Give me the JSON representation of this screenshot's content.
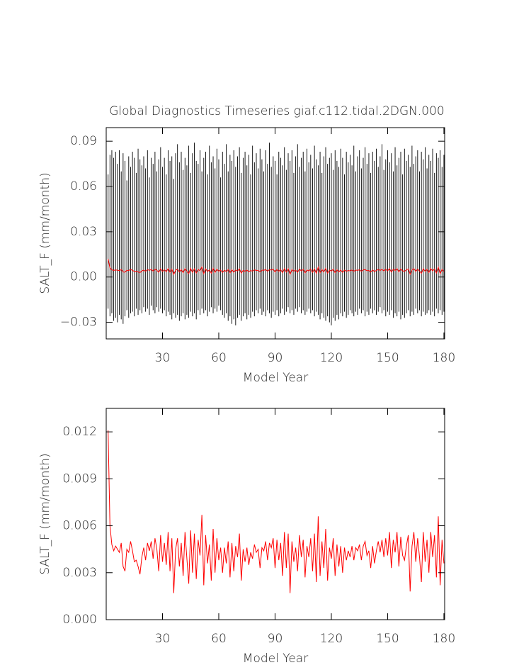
{
  "chart_data": [
    {
      "type": "line",
      "title": "Global Diagnostics Timeseries giaf.c112.tidal.2DGN.000",
      "y_label": "SALT_F (mm/month)",
      "x_label": "Model Year",
      "xlim": [
        0,
        180.4
      ],
      "xticks": [
        30,
        60,
        90,
        120,
        150,
        180
      ],
      "ylim": [
        -0.041,
        0.099
      ],
      "yticks": [
        0.09,
        0.06,
        0.03,
        {
          "value": 0,
          "label": "0.00"
        },
        {
          "value": -0.03,
          "label": "−0.03"
        }
      ],
      "x": [
        1,
        2,
        3,
        4,
        5,
        6,
        7,
        8,
        9,
        10,
        11,
        12,
        13,
        14,
        15,
        16,
        17,
        18,
        19,
        20,
        21,
        22,
        23,
        24,
        25,
        26,
        27,
        28,
        29,
        30,
        31,
        32,
        33,
        34,
        35,
        36,
        37,
        38,
        39,
        40,
        41,
        42,
        43,
        44,
        45,
        46,
        47,
        48,
        49,
        50,
        51,
        52,
        53,
        54,
        55,
        56,
        57,
        58,
        59,
        60,
        61,
        62,
        63,
        64,
        65,
        66,
        67,
        68,
        69,
        70,
        71,
        72,
        73,
        74,
        75,
        76,
        77,
        78,
        79,
        80,
        81,
        82,
        83,
        84,
        85,
        86,
        87,
        88,
        89,
        90,
        91,
        92,
        93,
        94,
        95,
        96,
        97,
        98,
        99,
        100,
        101,
        102,
        103,
        104,
        105,
        106,
        107,
        108,
        109,
        110,
        111,
        112,
        113,
        114,
        115,
        116,
        117,
        118,
        119,
        120,
        121,
        122,
        123,
        124,
        125,
        126,
        127,
        128,
        129,
        130,
        131,
        132,
        133,
        134,
        135,
        136,
        137,
        138,
        139,
        140,
        141,
        142,
        143,
        144,
        145,
        146,
        147,
        148,
        149,
        150,
        151,
        152,
        153,
        154,
        155,
        156,
        157,
        158,
        159,
        160,
        161,
        162,
        163,
        164,
        165,
        166,
        167,
        168,
        169,
        170,
        171,
        172,
        173,
        174,
        175,
        176,
        177,
        178,
        179,
        180
      ],
      "range": {
        "color": "#000000",
        "high": [
          0.068,
          0.081,
          0.084,
          0.079,
          0.083,
          0.075,
          0.084,
          0.07,
          0.082,
          0.077,
          0.064,
          0.08,
          0.073,
          0.083,
          0.079,
          0.069,
          0.085,
          0.078,
          0.074,
          0.08,
          0.072,
          0.084,
          0.066,
          0.079,
          0.075,
          0.083,
          0.07,
          0.078,
          0.086,
          0.073,
          0.079,
          0.068,
          0.084,
          0.077,
          0.08,
          0.065,
          0.082,
          0.088,
          0.076,
          0.083,
          0.071,
          0.079,
          0.074,
          0.087,
          0.069,
          0.082,
          0.089,
          0.077,
          0.075,
          0.084,
          0.07,
          0.079,
          0.083,
          0.068,
          0.087,
          0.076,
          0.08,
          0.072,
          0.085,
          0.078,
          0.066,
          0.083,
          0.075,
          0.088,
          0.07,
          0.081,
          0.077,
          0.084,
          0.073,
          0.08,
          0.086,
          0.069,
          0.079,
          0.083,
          0.074,
          0.081,
          0.068,
          0.087,
          0.076,
          0.082,
          0.072,
          0.085,
          0.078,
          0.07,
          0.084,
          0.075,
          0.089,
          0.073,
          0.08,
          0.077,
          0.068,
          0.083,
          0.079,
          0.074,
          0.086,
          0.071,
          0.082,
          0.077,
          0.084,
          0.069,
          0.08,
          0.088,
          0.073,
          0.079,
          0.083,
          0.07,
          0.085,
          0.076,
          0.081,
          0.072,
          0.087,
          0.078,
          0.074,
          0.083,
          0.069,
          0.08,
          0.086,
          0.075,
          0.079,
          0.082,
          0.071,
          0.084,
          0.077,
          0.073,
          0.085,
          0.079,
          0.068,
          0.083,
          0.076,
          0.081,
          0.074,
          0.087,
          0.07,
          0.08,
          0.084,
          0.072,
          0.079,
          0.086,
          0.075,
          0.082,
          0.069,
          0.083,
          0.077,
          0.085,
          0.073,
          0.08,
          0.088,
          0.071,
          0.078,
          0.084,
          0.076,
          0.082,
          0.07,
          0.086,
          0.074,
          0.079,
          0.083,
          0.068,
          0.085,
          0.077,
          0.081,
          0.073,
          0.087,
          0.075,
          0.08,
          0.084,
          0.07,
          0.083,
          0.078,
          0.086,
          0.072,
          0.081,
          0.077,
          0.085,
          0.069,
          0.082,
          0.079,
          0.084,
          0.073,
          0.081
        ],
        "low": [
          -0.021,
          -0.026,
          -0.024,
          -0.029,
          -0.027,
          -0.03,
          -0.025,
          -0.028,
          -0.031,
          -0.026,
          -0.022,
          -0.027,
          -0.024,
          -0.023,
          -0.026,
          -0.021,
          -0.025,
          -0.022,
          -0.024,
          -0.02,
          -0.023,
          -0.021,
          -0.025,
          -0.019,
          -0.022,
          -0.024,
          -0.02,
          -0.023,
          -0.021,
          -0.024,
          -0.022,
          -0.026,
          -0.023,
          -0.025,
          -0.028,
          -0.024,
          -0.027,
          -0.025,
          -0.029,
          -0.026,
          -0.024,
          -0.028,
          -0.025,
          -0.027,
          -0.023,
          -0.026,
          -0.024,
          -0.028,
          -0.022,
          -0.025,
          -0.021,
          -0.024,
          -0.022,
          -0.026,
          -0.023,
          -0.02,
          -0.024,
          -0.021,
          -0.023,
          -0.019,
          -0.022,
          -0.025,
          -0.027,
          -0.024,
          -0.029,
          -0.026,
          -0.031,
          -0.028,
          -0.032,
          -0.027,
          -0.025,
          -0.029,
          -0.026,
          -0.024,
          -0.028,
          -0.025,
          -0.027,
          -0.023,
          -0.026,
          -0.022,
          -0.024,
          -0.021,
          -0.025,
          -0.023,
          -0.026,
          -0.022,
          -0.024,
          -0.027,
          -0.023,
          -0.025,
          -0.022,
          -0.026,
          -0.024,
          -0.021,
          -0.025,
          -0.023,
          -0.02,
          -0.024,
          -0.022,
          -0.025,
          -0.021,
          -0.023,
          -0.02,
          -0.024,
          -0.022,
          -0.025,
          -0.023,
          -0.021,
          -0.024,
          -0.022,
          -0.026,
          -0.023,
          -0.025,
          -0.028,
          -0.024,
          -0.027,
          -0.029,
          -0.026,
          -0.03,
          -0.032,
          -0.027,
          -0.029,
          -0.025,
          -0.028,
          -0.024,
          -0.026,
          -0.023,
          -0.027,
          -0.025,
          -0.022,
          -0.024,
          -0.026,
          -0.023,
          -0.025,
          -0.021,
          -0.024,
          -0.022,
          -0.026,
          -0.023,
          -0.025,
          -0.021,
          -0.024,
          -0.022,
          -0.025,
          -0.023,
          -0.02,
          -0.024,
          -0.022,
          -0.026,
          -0.023,
          -0.025,
          -0.022,
          -0.027,
          -0.024,
          -0.026,
          -0.023,
          -0.028,
          -0.025,
          -0.027,
          -0.024,
          -0.022,
          -0.026,
          -0.023,
          -0.025,
          -0.021,
          -0.024,
          -0.022,
          -0.026,
          -0.023,
          -0.025,
          -0.024,
          -0.022,
          -0.025,
          -0.023,
          -0.026,
          -0.021,
          -0.024,
          -0.022,
          -0.025,
          -0.023
        ]
      },
      "series": [
        {
          "color": "#ff0000",
          "values": [
            0.0121,
            0.006,
            0.0048,
            0.0044,
            0.0047,
            0.0045,
            0.0043,
            0.0049,
            0.0034,
            0.0031,
            0.0045,
            0.0043,
            0.005,
            0.0044,
            0.0037,
            0.0038,
            0.0034,
            0.0029,
            0.004,
            0.0046,
            0.0038,
            0.0049,
            0.0044,
            0.005,
            0.0039,
            0.0052,
            0.0045,
            0.0031,
            0.0054,
            0.0037,
            0.0049,
            0.0035,
            0.0056,
            0.0031,
            0.0052,
            0.0017,
            0.0045,
            0.0052,
            0.0034,
            0.0049,
            0.0028,
            0.0056,
            0.0039,
            0.0023,
            0.0057,
            0.003,
            0.0055,
            0.0026,
            0.0051,
            0.0041,
            0.0067,
            0.0022,
            0.0054,
            0.0036,
            0.0048,
            0.0025,
            0.0058,
            0.003,
            0.0052,
            0.0038,
            0.0046,
            0.003,
            0.0046,
            0.0036,
            0.005,
            0.0027,
            0.0049,
            0.0031,
            0.0047,
            0.004,
            0.0055,
            0.0025,
            0.0045,
            0.0037,
            0.0046,
            0.0035,
            0.0043,
            0.0039,
            0.0048,
            0.0043,
            0.0045,
            0.0033,
            0.0046,
            0.0044,
            0.005,
            0.0038,
            0.0049,
            0.0046,
            0.0052,
            0.0033,
            0.0051,
            0.0038,
            0.0049,
            0.0028,
            0.0056,
            0.0033,
            0.0055,
            0.0017,
            0.005,
            0.0037,
            0.0046,
            0.0031,
            0.0054,
            0.004,
            0.0051,
            0.0027,
            0.0047,
            0.004,
            0.0052,
            0.0031,
            0.0055,
            0.0024,
            0.0066,
            0.0028,
            0.005,
            0.0033,
            0.0058,
            0.0025,
            0.0046,
            0.0039,
            0.0052,
            0.0028,
            0.0048,
            0.0034,
            0.0047,
            0.003,
            0.0046,
            0.0038,
            0.0044,
            0.004,
            0.0047,
            0.0038,
            0.0046,
            0.0044,
            0.0048,
            0.0038,
            0.0047,
            0.005,
            0.0041,
            0.0044,
            0.0033,
            0.0047,
            0.0036,
            0.0044,
            0.005,
            0.0043,
            0.0051,
            0.004,
            0.0052,
            0.0041,
            0.0056,
            0.0033,
            0.0051,
            0.0043,
            0.0056,
            0.0034,
            0.0053,
            0.0041,
            0.0038,
            0.0047,
            0.0054,
            0.0018,
            0.0047,
            0.0056,
            0.0037,
            0.0052,
            0.004,
            0.0024,
            0.0056,
            0.0037,
            0.0051,
            0.003,
            0.0056,
            0.004,
            0.0054,
            0.0027,
            0.0066,
            0.0022,
            0.0051,
            0.0036
          ]
        }
      ]
    },
    {
      "type": "line",
      "y_label": "SALT_F (mm/month)",
      "x_label": "Model Year",
      "xlim": [
        0,
        180.4
      ],
      "xticks": [
        30,
        60,
        90,
        120,
        150,
        180
      ],
      "ylim": [
        0,
        0.0135
      ],
      "yticks": [
        {
          "value": 0,
          "label": "0.000"
        },
        0.003,
        0.006,
        0.009,
        0.012
      ],
      "x": [
        1,
        2,
        3,
        4,
        5,
        6,
        7,
        8,
        9,
        10,
        11,
        12,
        13,
        14,
        15,
        16,
        17,
        18,
        19,
        20,
        21,
        22,
        23,
        24,
        25,
        26,
        27,
        28,
        29,
        30,
        31,
        32,
        33,
        34,
        35,
        36,
        37,
        38,
        39,
        40,
        41,
        42,
        43,
        44,
        45,
        46,
        47,
        48,
        49,
        50,
        51,
        52,
        53,
        54,
        55,
        56,
        57,
        58,
        59,
        60,
        61,
        62,
        63,
        64,
        65,
        66,
        67,
        68,
        69,
        70,
        71,
        72,
        73,
        74,
        75,
        76,
        77,
        78,
        79,
        80,
        81,
        82,
        83,
        84,
        85,
        86,
        87,
        88,
        89,
        90,
        91,
        92,
        93,
        94,
        95,
        96,
        97,
        98,
        99,
        100,
        101,
        102,
        103,
        104,
        105,
        106,
        107,
        108,
        109,
        110,
        111,
        112,
        113,
        114,
        115,
        116,
        117,
        118,
        119,
        120,
        121,
        122,
        123,
        124,
        125,
        126,
        127,
        128,
        129,
        130,
        131,
        132,
        133,
        134,
        135,
        136,
        137,
        138,
        139,
        140,
        141,
        142,
        143,
        144,
        145,
        146,
        147,
        148,
        149,
        150,
        151,
        152,
        153,
        154,
        155,
        156,
        157,
        158,
        159,
        160,
        161,
        162,
        163,
        164,
        165,
        166,
        167,
        168,
        169,
        170,
        171,
        172,
        173,
        174,
        175,
        176,
        177,
        178,
        179,
        180
      ],
      "series": [
        {
          "color": "#ff0000",
          "values": [
            0.0121,
            0.006,
            0.0048,
            0.0044,
            0.0047,
            0.0045,
            0.0043,
            0.0049,
            0.0034,
            0.0031,
            0.0045,
            0.0043,
            0.005,
            0.0044,
            0.0037,
            0.0038,
            0.0034,
            0.0029,
            0.004,
            0.0046,
            0.0038,
            0.0049,
            0.0044,
            0.005,
            0.0039,
            0.0052,
            0.0045,
            0.0031,
            0.0054,
            0.0037,
            0.0049,
            0.0035,
            0.0056,
            0.0031,
            0.0052,
            0.0017,
            0.0045,
            0.0052,
            0.0034,
            0.0049,
            0.0028,
            0.0056,
            0.0039,
            0.0023,
            0.0057,
            0.003,
            0.0055,
            0.0026,
            0.0051,
            0.0041,
            0.0067,
            0.0022,
            0.0054,
            0.0036,
            0.0048,
            0.0025,
            0.0058,
            0.003,
            0.0052,
            0.0038,
            0.0046,
            0.003,
            0.0046,
            0.0036,
            0.005,
            0.0027,
            0.0049,
            0.0031,
            0.0047,
            0.004,
            0.0055,
            0.0025,
            0.0045,
            0.0037,
            0.0046,
            0.0035,
            0.0043,
            0.0039,
            0.0048,
            0.0043,
            0.0045,
            0.0033,
            0.0046,
            0.0044,
            0.005,
            0.0038,
            0.0049,
            0.0046,
            0.0052,
            0.0033,
            0.0051,
            0.0038,
            0.0049,
            0.0028,
            0.0056,
            0.0033,
            0.0055,
            0.0017,
            0.005,
            0.0037,
            0.0046,
            0.0031,
            0.0054,
            0.004,
            0.0051,
            0.0027,
            0.0047,
            0.004,
            0.0052,
            0.0031,
            0.0055,
            0.0024,
            0.0066,
            0.0028,
            0.005,
            0.0033,
            0.0058,
            0.0025,
            0.0046,
            0.0039,
            0.0052,
            0.0028,
            0.0048,
            0.0034,
            0.0047,
            0.003,
            0.0046,
            0.0038,
            0.0044,
            0.004,
            0.0047,
            0.0038,
            0.0046,
            0.0044,
            0.0048,
            0.0038,
            0.0047,
            0.005,
            0.0041,
            0.0044,
            0.0033,
            0.0047,
            0.0036,
            0.0044,
            0.005,
            0.0043,
            0.0051,
            0.004,
            0.0052,
            0.0041,
            0.0056,
            0.0033,
            0.0051,
            0.0043,
            0.0056,
            0.0034,
            0.0053,
            0.0041,
            0.0038,
            0.0047,
            0.0054,
            0.0018,
            0.0047,
            0.0056,
            0.0037,
            0.0052,
            0.004,
            0.0024,
            0.0056,
            0.0037,
            0.0051,
            0.003,
            0.0056,
            0.004,
            0.0054,
            0.0027,
            0.0066,
            0.0022,
            0.0051,
            0.0036
          ]
        }
      ]
    }
  ]
}
